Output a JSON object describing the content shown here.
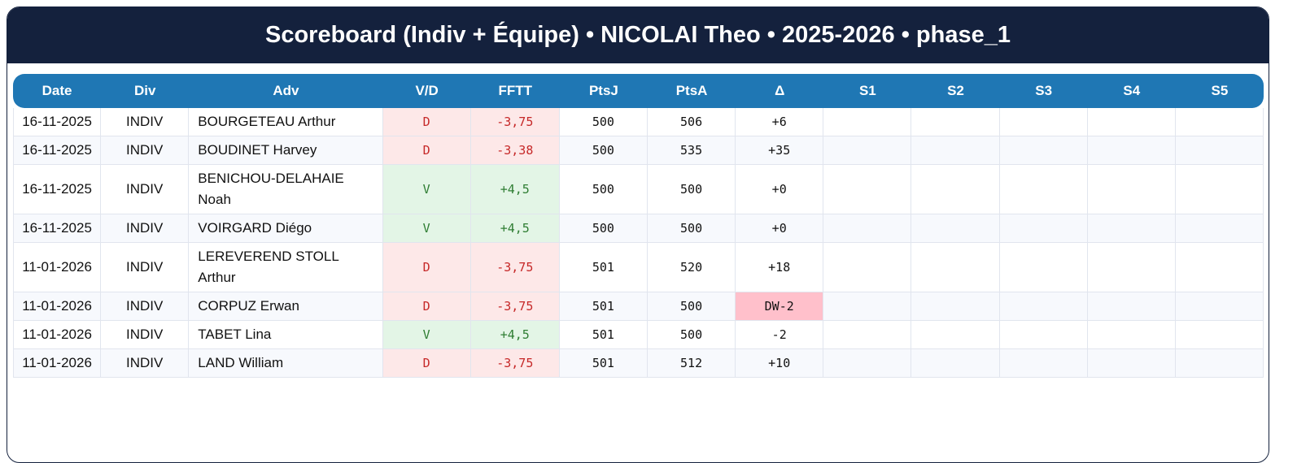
{
  "header": {
    "title": "Scoreboard (Indiv + Équipe) • NICOLAI Theo • 2025-2026 • phase_1"
  },
  "table": {
    "columns": [
      "Date",
      "Div",
      "Adv",
      "V/D",
      "FFTT",
      "PtsJ",
      "PtsA",
      "Δ",
      "S1",
      "S2",
      "S3",
      "S4",
      "S5"
    ],
    "rows": [
      [
        "16-11-2025",
        "INDIV",
        "BOURGETEAU Arthur",
        "D",
        "-3,75",
        "500",
        "506",
        "+6"
      ],
      [
        "16-11-2025",
        "INDIV",
        "BOUDINET Harvey",
        "D",
        "-3,38",
        "500",
        "535",
        "+35"
      ],
      [
        "16-11-2025",
        "INDIV",
        "BENICHOU-DELAHAIE Noah",
        "V",
        "+4,5",
        "500",
        "500",
        "+0"
      ],
      [
        "16-11-2025",
        "INDIV",
        "VOIRGARD Diégo",
        "V",
        "+4,5",
        "500",
        "500",
        "+0"
      ],
      [
        "11-01-2026",
        "INDIV",
        "LEREVEREND STOLL Arthur",
        "D",
        "-3,75",
        "501",
        "520",
        "+18"
      ],
      [
        "11-01-2026",
        "INDIV",
        "CORPUZ Erwan",
        "D",
        "-3,75",
        "501",
        "500",
        "DW-2"
      ],
      [
        "11-01-2026",
        "INDIV",
        "TABET Lina",
        "V",
        "+4,5",
        "501",
        "500",
        "-2"
      ],
      [
        "11-01-2026",
        "INDIV",
        "LAND William",
        "D",
        "-3,75",
        "501",
        "512",
        "+10"
      ]
    ]
  }
}
